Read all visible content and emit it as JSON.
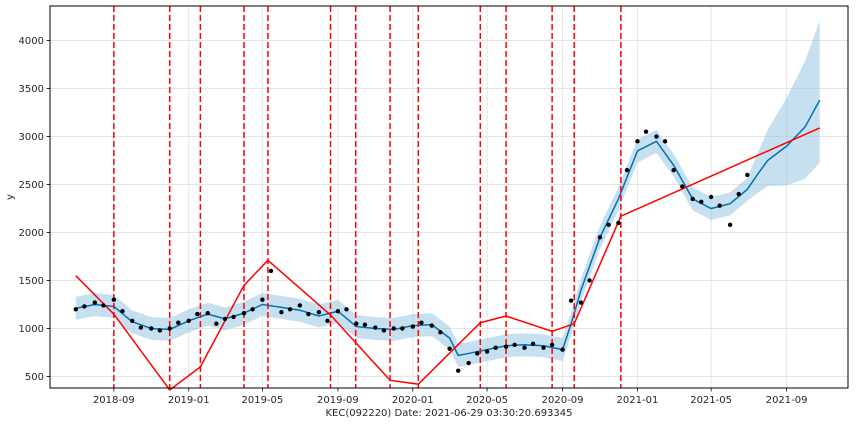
{
  "chart_data": {
    "type": "line",
    "title": "",
    "xlabel": "KEC(092220) Date: 2021-06-29 03:30:20.693345",
    "ylabel": "y",
    "grid": true,
    "xlim": [
      "2018-05-20",
      "2021-12-10"
    ],
    "ylim": [
      380,
      4360
    ],
    "x_ticks": [
      "2018-09",
      "2019-01",
      "2019-05",
      "2019-09",
      "2020-01",
      "2020-05",
      "2020-09",
      "2021-01",
      "2021-05",
      "2021-09"
    ],
    "y_ticks": [
      500,
      1000,
      1500,
      2000,
      2500,
      3000,
      3500,
      4000
    ],
    "colors": {
      "observed": "#000000",
      "forecast": "#0072B2",
      "uncertainty": "#99C6E1",
      "trend": "#ff0000",
      "changepoints": "#ff0000",
      "grid": "#e5e5e5"
    },
    "series": [
      {
        "kind": "observed",
        "x": [
          "2018-07-01",
          "2018-07-15",
          "2018-08-01",
          "2018-08-15",
          "2018-09-01",
          "2018-09-15",
          "2018-10-01",
          "2018-10-15",
          "2018-11-01",
          "2018-11-15",
          "2018-12-01",
          "2018-12-15",
          "2019-01-01",
          "2019-01-15",
          "2019-02-01",
          "2019-02-15",
          "2019-03-01",
          "2019-03-15",
          "2019-04-01",
          "2019-04-15",
          "2019-05-01",
          "2019-05-15",
          "2019-06-01",
          "2019-06-15",
          "2019-07-01",
          "2019-07-15",
          "2019-08-01",
          "2019-08-15",
          "2019-09-01",
          "2019-09-15",
          "2019-10-01",
          "2019-10-15",
          "2019-11-01",
          "2019-11-15",
          "2019-12-01",
          "2019-12-15",
          "2020-01-01",
          "2020-01-15",
          "2020-02-01",
          "2020-02-15",
          "2020-03-01",
          "2020-03-15",
          "2020-04-01",
          "2020-04-15",
          "2020-05-01",
          "2020-05-15",
          "2020-06-01",
          "2020-06-15",
          "2020-07-01",
          "2020-07-15",
          "2020-08-01",
          "2020-08-15",
          "2020-09-01",
          "2020-09-15",
          "2020-10-01",
          "2020-10-15",
          "2020-11-01",
          "2020-11-15",
          "2020-12-01",
          "2020-12-15",
          "2021-01-01",
          "2021-01-15",
          "2021-02-01",
          "2021-02-15",
          "2021-03-01",
          "2021-03-15",
          "2021-04-01",
          "2021-04-15",
          "2021-05-01",
          "2021-05-15",
          "2021-06-01",
          "2021-06-15",
          "2021-06-29"
        ],
        "y": [
          1200,
          1230,
          1270,
          1240,
          1300,
          1180,
          1080,
          1010,
          1000,
          980,
          1000,
          1060,
          1080,
          1150,
          1160,
          1050,
          1100,
          1120,
          1160,
          1200,
          1300,
          1600,
          1170,
          1200,
          1240,
          1150,
          1170,
          1080,
          1180,
          1200,
          1050,
          1040,
          1010,
          980,
          1000,
          1000,
          1020,
          1060,
          1030,
          960,
          790,
          560,
          640,
          740,
          760,
          800,
          810,
          830,
          800,
          840,
          800,
          830,
          780,
          1290,
          1270,
          1500,
          1950,
          2080,
          2100,
          2650,
          2950,
          3050,
          3000,
          2950,
          2650,
          2480,
          2350,
          2320,
          2370,
          2280,
          2080,
          2400,
          2600
        ]
      },
      {
        "kind": "forecast",
        "x": [
          "2018-07-01",
          "2018-08-01",
          "2018-09-01",
          "2018-10-01",
          "2018-11-01",
          "2018-12-01",
          "2019-01-01",
          "2019-02-01",
          "2019-03-01",
          "2019-04-01",
          "2019-05-01",
          "2019-06-01",
          "2019-07-01",
          "2019-08-01",
          "2019-09-01",
          "2019-10-01",
          "2019-11-01",
          "2019-12-01",
          "2020-01-01",
          "2020-02-01",
          "2020-03-01",
          "2020-03-15",
          "2020-04-01",
          "2020-05-01",
          "2020-06-01",
          "2020-07-01",
          "2020-08-01",
          "2020-09-01",
          "2020-09-15",
          "2020-10-01",
          "2020-11-01",
          "2020-12-01",
          "2021-01-01",
          "2021-02-01",
          "2021-03-01",
          "2021-04-01",
          "2021-05-01",
          "2021-06-01",
          "2021-06-29",
          "2021-07-15",
          "2021-08-01",
          "2021-09-01",
          "2021-10-01",
          "2021-10-25"
        ],
        "y": [
          1210,
          1250,
          1230,
          1070,
          1000,
          990,
          1080,
          1150,
          1100,
          1160,
          1250,
          1220,
          1190,
          1130,
          1180,
          1020,
          1000,
          990,
          1030,
          1040,
          900,
          720,
          740,
          780,
          820,
          830,
          820,
          780,
          1050,
          1400,
          1950,
          2350,
          2850,
          2950,
          2700,
          2350,
          2250,
          2300,
          2450,
          2600,
          2750,
          2900,
          3100,
          3380
        ]
      },
      {
        "kind": "trend",
        "x": [
          "2018-07-01",
          "2018-09-01",
          "2018-12-01",
          "2019-01-20",
          "2019-04-01",
          "2019-05-10",
          "2019-08-20",
          "2019-11-25",
          "2020-01-10",
          "2020-04-20",
          "2020-06-01",
          "2020-08-15",
          "2020-09-20",
          "2020-12-05",
          "2021-10-25"
        ],
        "y": [
          1550,
          1150,
          360,
          600,
          1450,
          1710,
          1140,
          460,
          420,
          1060,
          1130,
          970,
          1050,
          2170,
          3090
        ]
      }
    ],
    "changepoints": [
      "2018-09-01",
      "2018-12-01",
      "2019-01-20",
      "2019-04-01",
      "2019-05-10",
      "2019-08-20",
      "2019-09-30",
      "2019-11-25",
      "2020-01-10",
      "2020-04-20",
      "2020-06-01",
      "2020-08-15",
      "2020-09-20",
      "2020-12-05"
    ]
  }
}
